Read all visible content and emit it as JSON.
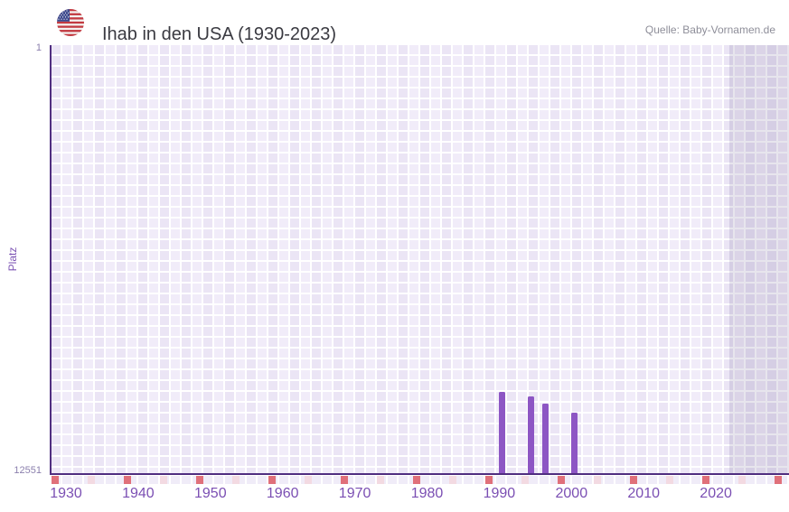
{
  "header": {
    "title": "Ihab in den USA (1930-2023)",
    "source": "Quelle: Baby-Vornamen.de"
  },
  "chart_data": {
    "type": "bar",
    "title": "Ihab in den USA (1930-2023)",
    "xlabel": "",
    "ylabel": "Platz",
    "x_tick_labels": [
      "1930",
      "1940",
      "1950",
      "1960",
      "1970",
      "1980",
      "1990",
      "2000",
      "2010",
      "2020"
    ],
    "x_range_years": [
      1928,
      2030
    ],
    "y_axis": {
      "label_top": "1",
      "label_bottom": "12551",
      "min": 1,
      "max": 12551,
      "inverted": true
    },
    "grid": "checkered",
    "legend_position": "none",
    "series": [
      {
        "name": "Platz",
        "points": [
          {
            "year": 1990,
            "rank": 10150
          },
          {
            "year": 1994,
            "rank": 10290
          },
          {
            "year": 1996,
            "rank": 10490
          },
          {
            "year": 2000,
            "rank": 10760
          }
        ]
      }
    ]
  },
  "colors": {
    "bar": "#8d56c4",
    "axis_line": "#502e80",
    "tick_mark_dark": "#e0707a",
    "tick_mark_light": "#f3dae2",
    "x_label": "#7b4fb3",
    "y_label": "#8b7fad",
    "y_title": "#7d55b4",
    "title_text": "#3a3a41",
    "source_text": "#8e8e99",
    "grid_cell": "#ebe5f5",
    "grid_cell_alt": "#f1ecf9",
    "future_band_overlay": "rgba(86,74,125,0.14)",
    "flag_red": "#c23a41",
    "flag_blue": "#3d4a8d"
  }
}
